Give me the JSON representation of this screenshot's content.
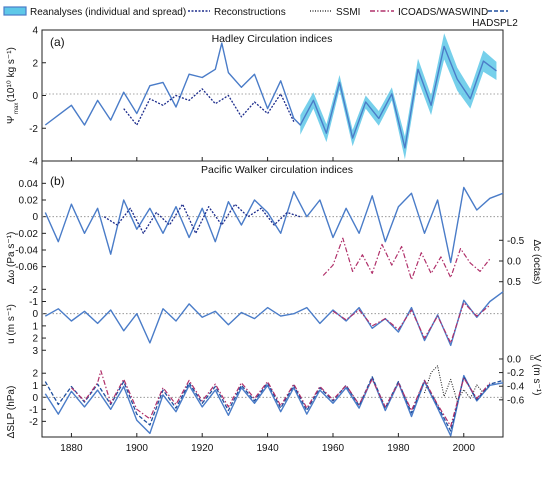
{
  "legend": [
    {
      "label": "Reanalyses (individual and spread)",
      "color": "#4a7cc8",
      "fill": "#5ec8e8",
      "style": "band"
    },
    {
      "label": "Reconstructions",
      "color": "#1c2c8c",
      "style": "dotted"
    },
    {
      "label": "SSMI",
      "color": "#111111",
      "style": "dotted-fine"
    },
    {
      "label": "ICOADS/WASWIND",
      "color": "#b0306a",
      "style": "dashdot"
    },
    {
      "label": "HADSPL2",
      "color": "#1f4f9e",
      "style": "dashed"
    }
  ],
  "chart_data": [
    {
      "type": "line",
      "panel_label": "(a)",
      "title": "Hadley Circulation indices",
      "ylabel_main": "Ψ",
      "ylabel_sub": "max",
      "ylabel_unit": "(10¹⁰ kg s⁻¹)",
      "ylim": [
        -4,
        4
      ],
      "yticks": [
        "4",
        "2",
        "0",
        "-2",
        "-4"
      ],
      "xlim": [
        1871,
        2012
      ],
      "series": [
        {
          "name": "Reanalyses (individual and spread)",
          "x": [
            1872,
            1876,
            1880,
            1884,
            1888,
            1892,
            1896,
            1900,
            1904,
            1908,
            1912,
            1916,
            1920,
            1924,
            1926,
            1928,
            1932,
            1936,
            1940,
            1944,
            1948,
            1950,
            1954,
            1958,
            1962,
            1966,
            1970,
            1974,
            1978,
            1982,
            1986,
            1990,
            1994,
            1998,
            2002,
            2006,
            2010
          ],
          "y": [
            -1.8,
            -1.2,
            -0.6,
            -1.8,
            -0.3,
            -1.5,
            0.2,
            -1.1,
            0.6,
            0.8,
            -0.7,
            1.3,
            1.1,
            1.6,
            3.2,
            1.4,
            0.5,
            1.3,
            -0.8,
            0.9,
            -1.4,
            -1.8,
            -0.3,
            -2.3,
            0.8,
            -2.6,
            -0.4,
            -1.4,
            0.1,
            -3.2,
            1.6,
            -0.6,
            3.0,
            1.0,
            -0.2,
            2.1,
            1.5
          ],
          "spread": [
            0,
            0,
            0,
            0,
            0,
            0,
            0,
            0,
            0,
            0,
            0,
            0,
            0,
            0,
            0,
            0,
            0,
            0,
            0,
            0,
            0,
            1.2,
            1.0,
            1.1,
            0.9,
            1.0,
            0.8,
            0.9,
            0.8,
            1.4,
            1.3,
            1.2,
            1.6,
            1.4,
            1.2,
            1.3,
            1.1
          ]
        },
        {
          "name": "Reconstructions",
          "x": [
            1896,
            1900,
            1904,
            1908,
            1912,
            1916,
            1920,
            1924,
            1928,
            1932,
            1936,
            1940,
            1944,
            1948
          ],
          "y": [
            -0.8,
            -1.8,
            -0.2,
            -0.6,
            0.0,
            -0.3,
            0.4,
            -0.5,
            0.0,
            -1.3,
            -0.4,
            -1.1,
            0.1,
            -1.6
          ]
        }
      ]
    },
    {
      "type": "line",
      "panel_label": "(b)",
      "title": "Pacific Walker circulation indices",
      "subplots": [
        {
          "ylabel": "Δω (Pa s⁻¹)",
          "ylim": [
            -0.07,
            0.05
          ],
          "yticks": [
            "0.04",
            "0.02",
            "0",
            "-0.02",
            "-0.04",
            "-0.06"
          ],
          "series": [
            {
              "name": "Reanalyses (individual and spread)",
              "x": [
                1872,
                1876,
                1880,
                1884,
                1888,
                1892,
                1896,
                1900,
                1904,
                1908,
                1912,
                1916,
                1920,
                1924,
                1928,
                1932,
                1936,
                1940,
                1944,
                1948,
                1952,
                1956,
                1960,
                1964,
                1968,
                1972,
                1976,
                1980,
                1984,
                1988,
                1992,
                1996,
                2000,
                2004,
                2008,
                2012
              ],
              "y": [
                0.005,
                -0.03,
                0.015,
                -0.02,
                0.01,
                -0.045,
                0.02,
                -0.015,
                0.01,
                -0.02,
                0.012,
                -0.025,
                0.01,
                -0.03,
                0.018,
                -0.01,
                0.02,
                0.005,
                -0.02,
                0.03,
                0.0,
                0.02,
                -0.025,
                0.01,
                -0.02,
                0.025,
                -0.03,
                0.012,
                0.028,
                -0.02,
                0.02,
                -0.055,
                0.035,
                0.008,
                0.022,
                0.028
              ]
            },
            {
              "name": "Reconstructions",
              "x": [
                1890,
                1894,
                1898,
                1902,
                1906,
                1910,
                1914,
                1918,
                1922,
                1926,
                1930,
                1934,
                1938,
                1942,
                1946,
                1950
              ],
              "y": [
                0.0,
                -0.01,
                0.01,
                -0.02,
                0.005,
                -0.01,
                0.015,
                -0.02,
                0.012,
                -0.01,
                0.015,
                0.0,
                0.01,
                -0.01,
                0.005,
                0.0
              ]
            }
          ]
        },
        {
          "ylabel": "Δc (octas)",
          "position": "right",
          "ylim": [
            0.7,
            -0.7
          ],
          "yticks": [
            "-0.5",
            "0.0",
            "0.5"
          ],
          "series": [
            {
              "name": "ICOADS/WASWIND",
              "x": [
                1957,
                1960,
                1963,
                1966,
                1969,
                1972,
                1975,
                1978,
                1981,
                1984,
                1987,
                1990,
                1993,
                1996,
                1999,
                2002,
                2005,
                2008
              ],
              "y": [
                0.35,
                0.1,
                -0.55,
                0.25,
                -0.15,
                0.3,
                -0.4,
                0.1,
                -0.35,
                0.45,
                -0.2,
                0.3,
                -0.1,
                0.4,
                -0.3,
                0.05,
                0.25,
                -0.05
              ]
            }
          ]
        },
        {
          "ylabel": "u (m s⁻¹)",
          "ylim": [
            3.8,
            -2.6
          ],
          "yticks": [
            "-2",
            "-1",
            "0",
            "1",
            "2",
            "3"
          ],
          "series": [
            {
              "name": "Reanalyses (individual and spread)",
              "x": [
                1872,
                1876,
                1880,
                1884,
                1888,
                1892,
                1896,
                1900,
                1904,
                1908,
                1912,
                1916,
                1920,
                1924,
                1928,
                1932,
                1936,
                1940,
                1944,
                1948,
                1952,
                1956,
                1960,
                1964,
                1968,
                1972,
                1976,
                1980,
                1984,
                1988,
                1992,
                1996,
                2000,
                2004,
                2008,
                2012
              ],
              "y": [
                0.2,
                -0.4,
                0.6,
                -0.2,
                0.8,
                -0.3,
                1.4,
                0.0,
                2.4,
                -0.4,
                0.6,
                -0.8,
                0.3,
                -0.2,
                0.9,
                -0.1,
                0.4,
                -0.5,
                0.2,
                0.0,
                -0.5,
                0.8,
                -0.3,
                0.6,
                -0.5,
                1.2,
                0.4,
                1.5,
                -0.5,
                2.2,
                0.1,
                2.6,
                -1.1,
                0.3,
                -1.0,
                -1.8
              ]
            },
            {
              "name": "ICOADS/WASWIND",
              "x": [
                1960,
                1964,
                1968,
                1972,
                1976,
                1980,
                1984,
                1988,
                1992,
                1996,
                2000,
                2004,
                2008
              ],
              "y": [
                -0.2,
                0.5,
                -0.3,
                1.0,
                0.4,
                1.3,
                -0.3,
                2.0,
                0.2,
                2.4,
                -0.9,
                0.2,
                -0.7
              ]
            }
          ]
        },
        {
          "ylabel": "V (m s⁻¹)",
          "ylabel_sub": "E",
          "position": "right",
          "ylim": [
            -0.72,
            0.22
          ],
          "yticks": [
            "-0.6",
            "-0.4",
            "-0.2",
            "0.0"
          ],
          "series": [
            {
              "name": "SSMI",
              "x": [
                1988,
                1990,
                1992,
                1994,
                1996,
                1998,
                2000,
                2002,
                2004,
                2006,
                2008
              ],
              "y": [
                -0.5,
                -0.2,
                -0.1,
                -0.55,
                -0.3,
                -0.62,
                -0.45,
                -0.58,
                -0.38,
                -0.5,
                -0.4
              ]
            }
          ]
        },
        {
          "ylabel": "ΔSLP (hPa)",
          "ylim": [
            -3.3,
            2.6
          ],
          "yticks": [
            "2",
            "1",
            "0",
            "-1",
            "-2"
          ],
          "series": [
            {
              "name": "Reanalyses (individual and spread)",
              "x": [
                1872,
                1876,
                1880,
                1884,
                1888,
                1892,
                1896,
                1900,
                1904,
                1908,
                1912,
                1916,
                1920,
                1924,
                1928,
                1932,
                1936,
                1940,
                1944,
                1948,
                1952,
                1956,
                1960,
                1964,
                1968,
                1972,
                1976,
                1980,
                1984,
                1988,
                1992,
                1996,
                2000,
                2004,
                2008,
                2012
              ],
              "y": [
                0.3,
                -1.4,
                0.5,
                -0.8,
                0.6,
                -1.0,
                0.9,
                -1.9,
                -3.0,
                0.2,
                -1.2,
                1.0,
                -0.8,
                0.6,
                -1.5,
                0.8,
                -0.5,
                1.0,
                -1.2,
                0.8,
                -1.4,
                0.6,
                -0.5,
                0.8,
                -0.9,
                1.6,
                -1.1,
                1.2,
                -1.6,
                1.3,
                -0.9,
                -3.2,
                1.8,
                -0.3,
                1.0,
                1.2
              ]
            },
            {
              "name": "HADSPL2",
              "x": [
                1872,
                1876,
                1880,
                1884,
                1888,
                1892,
                1896,
                1900,
                1904,
                1908,
                1912,
                1916,
                1920,
                1924,
                1928,
                1932,
                1936,
                1940,
                1944,
                1948,
                1952,
                1956,
                1960,
                1964,
                1968,
                1972,
                1976,
                1980,
                1984,
                1988,
                1992,
                1996,
                2000,
                2004,
                2008,
                2012
              ],
              "y": [
                1.3,
                -0.6,
                0.9,
                -0.4,
                1.1,
                -0.6,
                1.3,
                -1.4,
                -2.3,
                0.6,
                -0.9,
                1.2,
                -0.5,
                0.9,
                -1.1,
                1.0,
                -0.3,
                1.2,
                -0.9,
                1.0,
                -1.1,
                0.8,
                -0.3,
                1.0,
                -0.7,
                1.7,
                -0.9,
                1.3,
                -1.3,
                1.4,
                -0.7,
                -2.8,
                1.7,
                -0.2,
                1.1,
                1.4
              ]
            },
            {
              "name": "ICOADS/WASWIND",
              "x": [
                1880,
                1884,
                1888,
                1889,
                1892,
                1896,
                1900,
                1904,
                1908,
                1912,
                1916,
                1920,
                1924,
                1928,
                1932,
                1936,
                1940,
                1944,
                1948,
                1952,
                1956,
                1960,
                1964,
                1968,
                1972,
                1976,
                1980,
                1984,
                1988,
                1992,
                1996,
                2000,
                2004,
                2008
              ],
              "y": [
                0.8,
                -0.3,
                1.2,
                2.2,
                -0.5,
                1.5,
                -1.0,
                -1.8,
                0.8,
                -0.6,
                1.4,
                -0.3,
                1.1,
                -0.8,
                1.2,
                -0.1,
                1.3,
                -0.7,
                1.1,
                -0.9,
                0.9,
                -0.2,
                1.0,
                -0.6,
                1.5,
                -0.8,
                1.2,
                -1.1,
                1.4,
                -0.6,
                -2.4,
                1.6,
                -0.1,
                1.2
              ]
            }
          ]
        }
      ],
      "xticks": [
        "1880",
        "1900",
        "1920",
        "1940",
        "1960",
        "1980",
        "2000"
      ],
      "xlim": [
        1871,
        2012
      ]
    }
  ]
}
